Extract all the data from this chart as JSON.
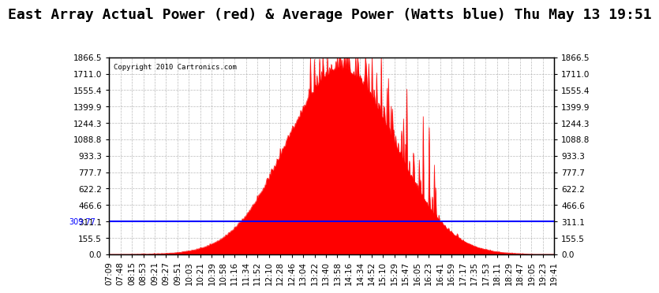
{
  "title": "East Array Actual Power (red) & Average Power (Watts blue) Thu May 13 19:51",
  "copyright": "Copyright 2010 Cartronics.com",
  "average_power": 309.77,
  "ymax": 1866.5,
  "ymin": 0.0,
  "yticks": [
    0.0,
    155.5,
    311.1,
    466.6,
    622.2,
    777.7,
    933.3,
    1088.8,
    1244.3,
    1399.9,
    1555.4,
    1711.0,
    1866.5
  ],
  "x_labels": [
    "07:09",
    "07:48",
    "08:15",
    "08:53",
    "09:21",
    "09:27",
    "09:51",
    "10:03",
    "10:21",
    "10:39",
    "10:58",
    "11:16",
    "11:34",
    "11:52",
    "12:10",
    "12:28",
    "12:46",
    "13:04",
    "13:22",
    "13:40",
    "13:58",
    "14:16",
    "14:34",
    "14:52",
    "15:10",
    "15:29",
    "15:47",
    "16:05",
    "16:23",
    "16:41",
    "16:59",
    "17:17",
    "17:35",
    "17:53",
    "18:11",
    "18:29",
    "18:47",
    "19:05",
    "19:23",
    "19:41"
  ],
  "background_color": "#ffffff",
  "plot_bg_color": "#ffffff",
  "grid_color": "#aaaaaa",
  "red_color": "#ff0000",
  "blue_color": "#0000ff",
  "title_fontsize": 13,
  "tick_fontsize": 7.5,
  "avg_label": "309.77"
}
